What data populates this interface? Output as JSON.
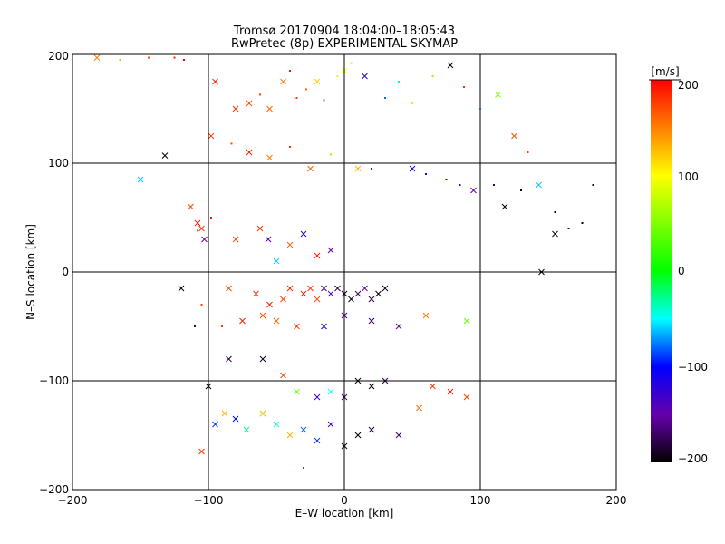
{
  "chart_data": {
    "type": "scatter",
    "title": "Tromsø 20170904 18:04:00–18:05:43",
    "subtitle": "RwPretec (8p) EXPERIMENTAL SKYMAP",
    "xlabel": "E–W location [km]",
    "ylabel": "N–S location [km]",
    "xlim": [
      -200,
      200
    ],
    "ylim": [
      -200,
      200
    ],
    "x_ticks": [
      "−200",
      "−100",
      "0",
      "100",
      "200"
    ],
    "y_ticks": [
      "−200",
      "−100",
      "0",
      "100",
      "200"
    ],
    "grid": "lines at ±100 and 0 km on both axes",
    "colorbar": {
      "unit": "[m/s]",
      "range": [
        -200,
        200
      ],
      "tick_labels": [
        "200",
        "100",
        "0",
        "−100",
        "−200"
      ],
      "colormap": "black-purple-blue-cyan-green-yellow-red"
    },
    "markers": {
      "small": "dot",
      "large": "x"
    },
    "points": [
      [
        -182,
        197,
        150,
        "x"
      ],
      [
        -165,
        195,
        130,
        "d"
      ],
      [
        -144,
        197,
        170,
        "d"
      ],
      [
        -125,
        197,
        190,
        "d"
      ],
      [
        -118,
        195,
        200,
        "d"
      ],
      [
        -95,
        175,
        190,
        "x"
      ],
      [
        -80,
        150,
        180,
        "x"
      ],
      [
        -70,
        155,
        170,
        "x"
      ],
      [
        -62,
        163,
        175,
        "d"
      ],
      [
        -55,
        150,
        160,
        "x"
      ],
      [
        -45,
        175,
        150,
        "x"
      ],
      [
        -40,
        185,
        195,
        "d"
      ],
      [
        -35,
        160,
        180,
        "d"
      ],
      [
        -28,
        168,
        160,
        "d"
      ],
      [
        -20,
        175,
        120,
        "x"
      ],
      [
        -15,
        158,
        175,
        "d"
      ],
      [
        -5,
        180,
        110,
        "d"
      ],
      [
        0,
        185,
        100,
        "x"
      ],
      [
        5,
        192,
        120,
        "d"
      ],
      [
        15,
        180,
        -120,
        "x"
      ],
      [
        30,
        160,
        -80,
        "d"
      ],
      [
        40,
        175,
        -30,
        "d"
      ],
      [
        50,
        155,
        110,
        "d"
      ],
      [
        65,
        180,
        60,
        "d"
      ],
      [
        78,
        190,
        -200,
        "x"
      ],
      [
        88,
        170,
        180,
        "d"
      ],
      [
        100,
        150,
        -40,
        "d"
      ],
      [
        113,
        163,
        50,
        "x"
      ],
      [
        125,
        125,
        170,
        "x"
      ],
      [
        135,
        110,
        180,
        "d"
      ],
      [
        -132,
        107,
        -200,
        "x"
      ],
      [
        -98,
        125,
        175,
        "x"
      ],
      [
        -83,
        118,
        170,
        "d"
      ],
      [
        -70,
        110,
        190,
        "x"
      ],
      [
        -55,
        105,
        150,
        "x"
      ],
      [
        -40,
        115,
        180,
        "d"
      ],
      [
        -25,
        95,
        160,
        "x"
      ],
      [
        -10,
        108,
        120,
        "d"
      ],
      [
        10,
        95,
        130,
        "x"
      ],
      [
        20,
        95,
        -130,
        "d"
      ],
      [
        -150,
        85,
        -60,
        "x"
      ],
      [
        -113,
        60,
        170,
        "x"
      ],
      [
        -108,
        45,
        190,
        "x"
      ],
      [
        -105,
        40,
        180,
        "x"
      ],
      [
        -103,
        30,
        -150,
        "x"
      ],
      [
        -108,
        38,
        175,
        "d"
      ],
      [
        -98,
        50,
        190,
        "d"
      ],
      [
        -80,
        30,
        170,
        "x"
      ],
      [
        -62,
        40,
        180,
        "x"
      ],
      [
        -56,
        30,
        -140,
        "x"
      ],
      [
        -50,
        10,
        -60,
        "x"
      ],
      [
        -40,
        25,
        160,
        "x"
      ],
      [
        -30,
        35,
        -120,
        "x"
      ],
      [
        -20,
        15,
        190,
        "x"
      ],
      [
        -10,
        20,
        -150,
        "x"
      ],
      [
        50,
        95,
        -110,
        "x"
      ],
      [
        60,
        90,
        -120,
        "d"
      ],
      [
        75,
        85,
        -100,
        "d"
      ],
      [
        85,
        80,
        -130,
        "d"
      ],
      [
        95,
        75,
        -150,
        "x"
      ],
      [
        110,
        80,
        -170,
        "d"
      ],
      [
        118,
        60,
        -200,
        "x"
      ],
      [
        130,
        75,
        -190,
        "d"
      ],
      [
        143,
        80,
        -60,
        "x"
      ],
      [
        155,
        55,
        -200,
        "d"
      ],
      [
        165,
        40,
        -190,
        "d"
      ],
      [
        175,
        45,
        -200,
        "d"
      ],
      [
        183,
        80,
        -200,
        "d"
      ],
      [
        155,
        35,
        -200,
        "x"
      ],
      [
        145,
        0,
        -200,
        "x"
      ],
      [
        -85,
        -15,
        170,
        "x"
      ],
      [
        -65,
        -20,
        180,
        "x"
      ],
      [
        -55,
        -30,
        190,
        "x"
      ],
      [
        -45,
        -25,
        175,
        "x"
      ],
      [
        -40,
        -15,
        185,
        "x"
      ],
      [
        -30,
        -20,
        190,
        "x"
      ],
      [
        -25,
        -15,
        180,
        "x"
      ],
      [
        -20,
        -25,
        170,
        "x"
      ],
      [
        -15,
        -15,
        -170,
        "x"
      ],
      [
        -10,
        -20,
        -150,
        "x"
      ],
      [
        -5,
        -15,
        -180,
        "x"
      ],
      [
        0,
        -20,
        -190,
        "x"
      ],
      [
        5,
        -25,
        -200,
        "x"
      ],
      [
        10,
        -20,
        -170,
        "x"
      ],
      [
        15,
        -15,
        -150,
        "x"
      ],
      [
        20,
        -25,
        -180,
        "x"
      ],
      [
        25,
        -20,
        -200,
        "x"
      ],
      [
        30,
        -15,
        -190,
        "x"
      ],
      [
        -120,
        -15,
        -200,
        "x"
      ],
      [
        -105,
        -30,
        175,
        "d"
      ],
      [
        -90,
        -50,
        180,
        "d"
      ],
      [
        -75,
        -45,
        190,
        "x"
      ],
      [
        -60,
        -40,
        170,
        "x"
      ],
      [
        -50,
        -45,
        160,
        "x"
      ],
      [
        -35,
        -50,
        180,
        "x"
      ],
      [
        -15,
        -50,
        -100,
        "x"
      ],
      [
        0,
        -40,
        -160,
        "x"
      ],
      [
        20,
        -45,
        -170,
        "x"
      ],
      [
        40,
        -50,
        -150,
        "x"
      ],
      [
        60,
        -40,
        150,
        "x"
      ],
      [
        90,
        -45,
        40,
        "x"
      ],
      [
        -100,
        -105,
        -200,
        "x"
      ],
      [
        -85,
        -80,
        -180,
        "x"
      ],
      [
        -60,
        -80,
        -190,
        "x"
      ],
      [
        -45,
        -95,
        170,
        "x"
      ],
      [
        -35,
        -110,
        40,
        "x"
      ],
      [
        -20,
        -115,
        -130,
        "x"
      ],
      [
        -10,
        -110,
        -50,
        "x"
      ],
      [
        0,
        -115,
        -170,
        "x"
      ],
      [
        10,
        -100,
        -190,
        "x"
      ],
      [
        20,
        -105,
        -200,
        "x"
      ],
      [
        30,
        -100,
        -180,
        "x"
      ],
      [
        -95,
        -140,
        -90,
        "x"
      ],
      [
        -88,
        -130,
        130,
        "x"
      ],
      [
        -80,
        -135,
        -100,
        "x"
      ],
      [
        -72,
        -145,
        -30,
        "x"
      ],
      [
        -60,
        -130,
        -110,
        "x"
      ],
      [
        -50,
        -140,
        -40,
        "x"
      ],
      [
        -40,
        -150,
        130,
        "x"
      ],
      [
        -30,
        -145,
        -80,
        "x"
      ],
      [
        -20,
        -155,
        -90,
        "x"
      ],
      [
        -10,
        -140,
        -130,
        "x"
      ],
      [
        0,
        -160,
        -190,
        "x"
      ],
      [
        10,
        -150,
        -200,
        "x"
      ],
      [
        20,
        -145,
        -180,
        "x"
      ],
      [
        40,
        -150,
        -170,
        "x"
      ],
      [
        55,
        -125,
        160,
        "x"
      ],
      [
        65,
        -105,
        180,
        "x"
      ],
      [
        78,
        -110,
        190,
        "x"
      ],
      [
        90,
        -115,
        175,
        "x"
      ],
      [
        -105,
        -165,
        180,
        "x"
      ],
      [
        -30,
        -180,
        -80,
        "d"
      ],
      [
        -110,
        -50,
        -170,
        "d"
      ],
      [
        -60,
        -130,
        110,
        "x"
      ]
    ]
  },
  "colors": {
    "frame": "#000000",
    "background": "#ffffff"
  }
}
